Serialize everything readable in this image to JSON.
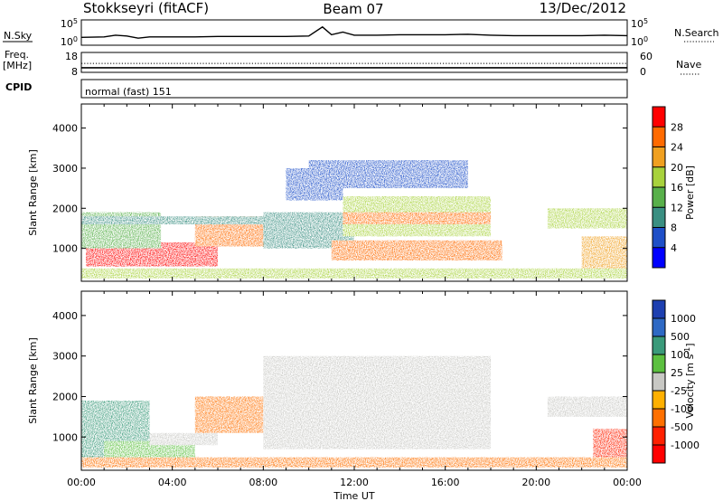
{
  "header": {
    "station": "Stokkseyri (fitACF)",
    "beam": "Beam 07",
    "date": "13/Dec/2012",
    "mode": "normal (fast) 151"
  },
  "side_labels": {
    "nsky": "N.Sky",
    "freq_top": "Freq.",
    "freq_unit": "[MHz]",
    "cpid": "CPID",
    "nsearch": "N.Search",
    "nave": "Nave"
  },
  "chart_data": [
    {
      "type": "line",
      "panel": "noise",
      "left_axis": {
        "label": "N.Sky",
        "ticks": [
          "10^5",
          "10^0"
        ],
        "log_range": [
          0,
          5
        ]
      },
      "right_axis": {
        "label": "N.Search",
        "ticks": [
          "10^5",
          "10^0"
        ]
      },
      "x": [
        0,
        1,
        1.5,
        2,
        2.5,
        3,
        4,
        5,
        6,
        7,
        8,
        9,
        10,
        10.6,
        11,
        11.5,
        12,
        13,
        14,
        15,
        16,
        17,
        18,
        19,
        20,
        21,
        22,
        23,
        24
      ],
      "y": [
        1.4,
        1.5,
        1.9,
        1.7,
        1.2,
        1.5,
        1.5,
        1.5,
        1.6,
        1.6,
        1.6,
        1.6,
        1.7,
        3.8,
        2.0,
        2.6,
        1.9,
        1.9,
        2.0,
        2.0,
        2.0,
        2.1,
        1.9,
        1.8,
        1.8,
        1.8,
        1.8,
        1.9,
        1.8
      ]
    },
    {
      "type": "line",
      "panel": "frequency",
      "left_axis": {
        "label": "Freq. [MHz]",
        "ticks": [
          18,
          8
        ],
        "range": [
          8,
          18
        ]
      },
      "right_axis": {
        "label": "Nave",
        "ticks": [
          60,
          0
        ],
        "range": [
          0,
          60
        ]
      },
      "series": [
        {
          "x": [
            0,
            24
          ],
          "y": [
            10.3,
            10.3
          ]
        },
        {
          "x": [
            0,
            24
          ],
          "y": [
            12.5,
            12.5
          ]
        }
      ]
    },
    {
      "type": "heatmap",
      "panel": "power",
      "title": "",
      "xlabel": "",
      "ylabel": "Slant Range [km]",
      "x_range": [
        0,
        24
      ],
      "y_range": [
        180,
        4600
      ],
      "y_ticks": [
        1000,
        2000,
        3000,
        4000
      ],
      "colorbar": {
        "label": "Power [dB]",
        "ticks": [
          4,
          8,
          12,
          16,
          20,
          24,
          28
        ],
        "range": [
          0,
          32
        ],
        "colors": [
          "#0000ff",
          "#1e4fc8",
          "#3a8f82",
          "#58b04a",
          "#a8d23c",
          "#f0a020",
          "#ff6a00",
          "#ff0000"
        ]
      },
      "regions": [
        {
          "x": [
            0.2,
            6
          ],
          "y": [
            550,
            1150
          ],
          "value": 28
        },
        {
          "x": [
            1,
            4.5
          ],
          "y": [
            700,
            1000
          ],
          "value": 30
        },
        {
          "x": [
            5,
            8.2
          ],
          "y": [
            1050,
            1800
          ],
          "value": 26
        },
        {
          "x": [
            0,
            3.5
          ],
          "y": [
            1000,
            1900
          ],
          "value": 12
        },
        {
          "x": [
            0,
            9.5
          ],
          "y": [
            1600,
            1800
          ],
          "value": 8
        },
        {
          "x": [
            8,
            12
          ],
          "y": [
            1000,
            1900
          ],
          "value": 10
        },
        {
          "x": [
            11,
            18.5
          ],
          "y": [
            700,
            1200
          ],
          "value": 24
        },
        {
          "x": [
            11.5,
            18
          ],
          "y": [
            1300,
            2300
          ],
          "value": 18
        },
        {
          "x": [
            11.5,
            18
          ],
          "y": [
            1600,
            1900
          ],
          "value": 26
        },
        {
          "x": [
            10,
            17
          ],
          "y": [
            2500,
            3200
          ],
          "value": 6
        },
        {
          "x": [
            9,
            11.5
          ],
          "y": [
            2200,
            3000
          ],
          "value": 7
        },
        {
          "x": [
            20.5,
            24
          ],
          "y": [
            1500,
            2000
          ],
          "value": 18
        },
        {
          "x": [
            22,
            24
          ],
          "y": [
            450,
            1300
          ],
          "value": 20
        },
        {
          "x": [
            0,
            24
          ],
          "y": [
            250,
            500
          ],
          "value": 16
        }
      ]
    },
    {
      "type": "heatmap",
      "panel": "velocity",
      "title": "",
      "xlabel": "Time UT",
      "ylabel": "Slant Range [km]",
      "x_range": [
        0,
        24
      ],
      "y_range": [
        180,
        4600
      ],
      "y_ticks": [
        1000,
        2000,
        3000,
        4000
      ],
      "x_ticks": [
        "00:00",
        "04:00",
        "08:00",
        "12:00",
        "16:00",
        "20:00",
        "00:00"
      ],
      "colorbar": {
        "label": "Velocity [m s^-1]",
        "ticks": [
          "1000",
          "500",
          "100",
          "25",
          "-25",
          "-100",
          "-500",
          "-1000"
        ],
        "colors": [
          "#1d3fb0",
          "#2e69c4",
          "#3a9a7a",
          "#5cc040",
          "#c8c8c4",
          "#ffb000",
          "#ff7000",
          "#ff2000",
          "#ff0000"
        ]
      },
      "regions": [
        {
          "x": [
            0,
            3
          ],
          "y": [
            300,
            1900
          ],
          "value": 200
        },
        {
          "x": [
            5,
            8
          ],
          "y": [
            1100,
            2000
          ],
          "value": -300
        },
        {
          "x": [
            1,
            5
          ],
          "y": [
            400,
            900
          ],
          "value": 25
        },
        {
          "x": [
            3,
            6
          ],
          "y": [
            800,
            1100
          ],
          "value": -25
        },
        {
          "x": [
            8,
            18
          ],
          "y": [
            700,
            3000
          ],
          "value": -25
        },
        {
          "x": [
            22.5,
            24
          ],
          "y": [
            500,
            1200
          ],
          "value": -700
        },
        {
          "x": [
            20.5,
            24
          ],
          "y": [
            1500,
            2000
          ],
          "value": -25
        },
        {
          "x": [
            0,
            24
          ],
          "y": [
            250,
            500
          ],
          "value": -150
        }
      ]
    }
  ]
}
